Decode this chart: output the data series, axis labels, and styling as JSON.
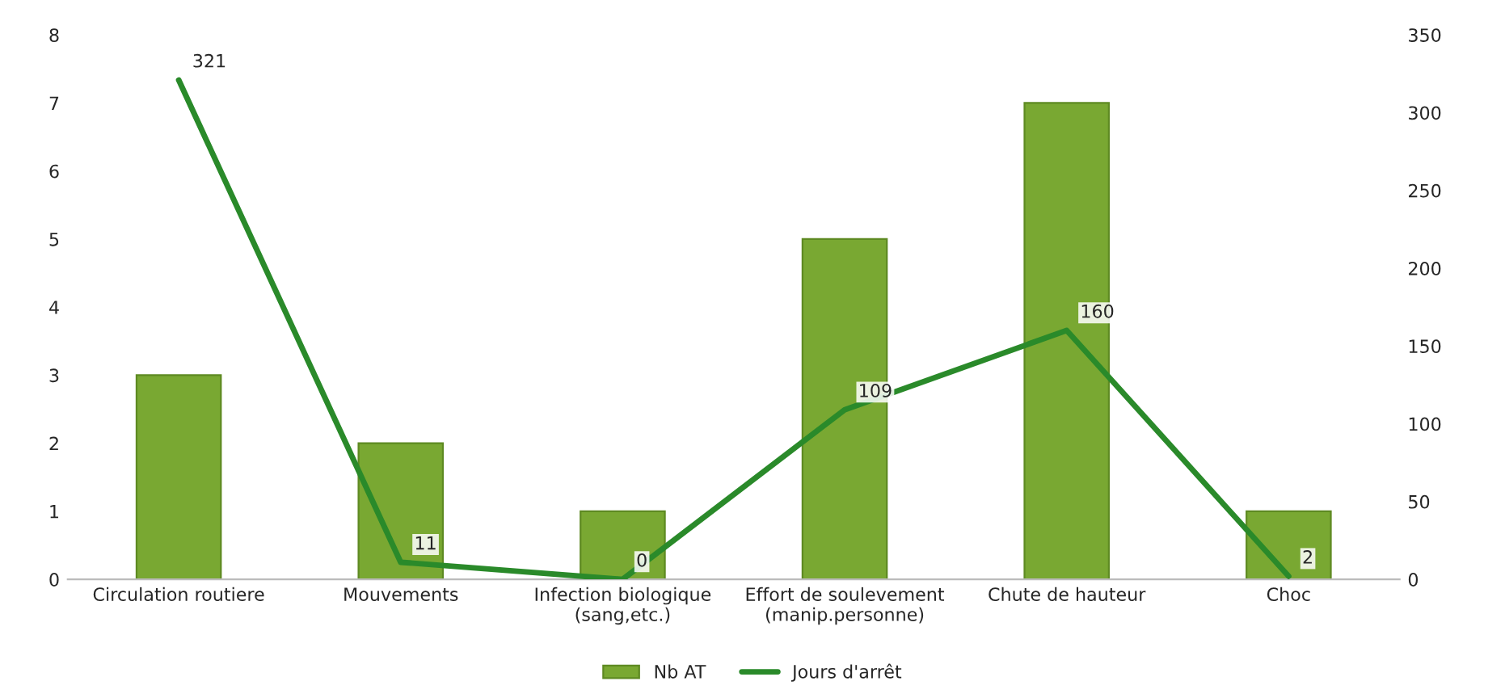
{
  "chart_data": {
    "type": "bar",
    "categories": [
      "Circulation routiere",
      "Mouvements",
      "Infection biologique\n(sang,etc.)",
      "Effort de soulevement\n(manip.personne)",
      "Chute de hauteur",
      "Choc"
    ],
    "series": [
      {
        "name": "Nb AT",
        "color": "#79a832",
        "values": [
          3,
          2,
          1,
          5,
          7,
          1
        ]
      },
      {
        "name": "Jours d'arrêt",
        "type": "line",
        "axis": "y2",
        "color": "#2a8a2a",
        "values": [
          321,
          11,
          0,
          109,
          160,
          2
        ],
        "data_labels": true
      }
    ],
    "ylim": [
      0,
      8
    ],
    "yticks": [
      0,
      1,
      2,
      3,
      4,
      5,
      6,
      7,
      8
    ],
    "y2lim": [
      0,
      350
    ],
    "y2ticks": [
      0,
      50,
      100,
      150,
      200,
      250,
      300,
      350
    ],
    "grid": false,
    "legend": "bottom",
    "marker": "none",
    "line_style": "solid"
  }
}
